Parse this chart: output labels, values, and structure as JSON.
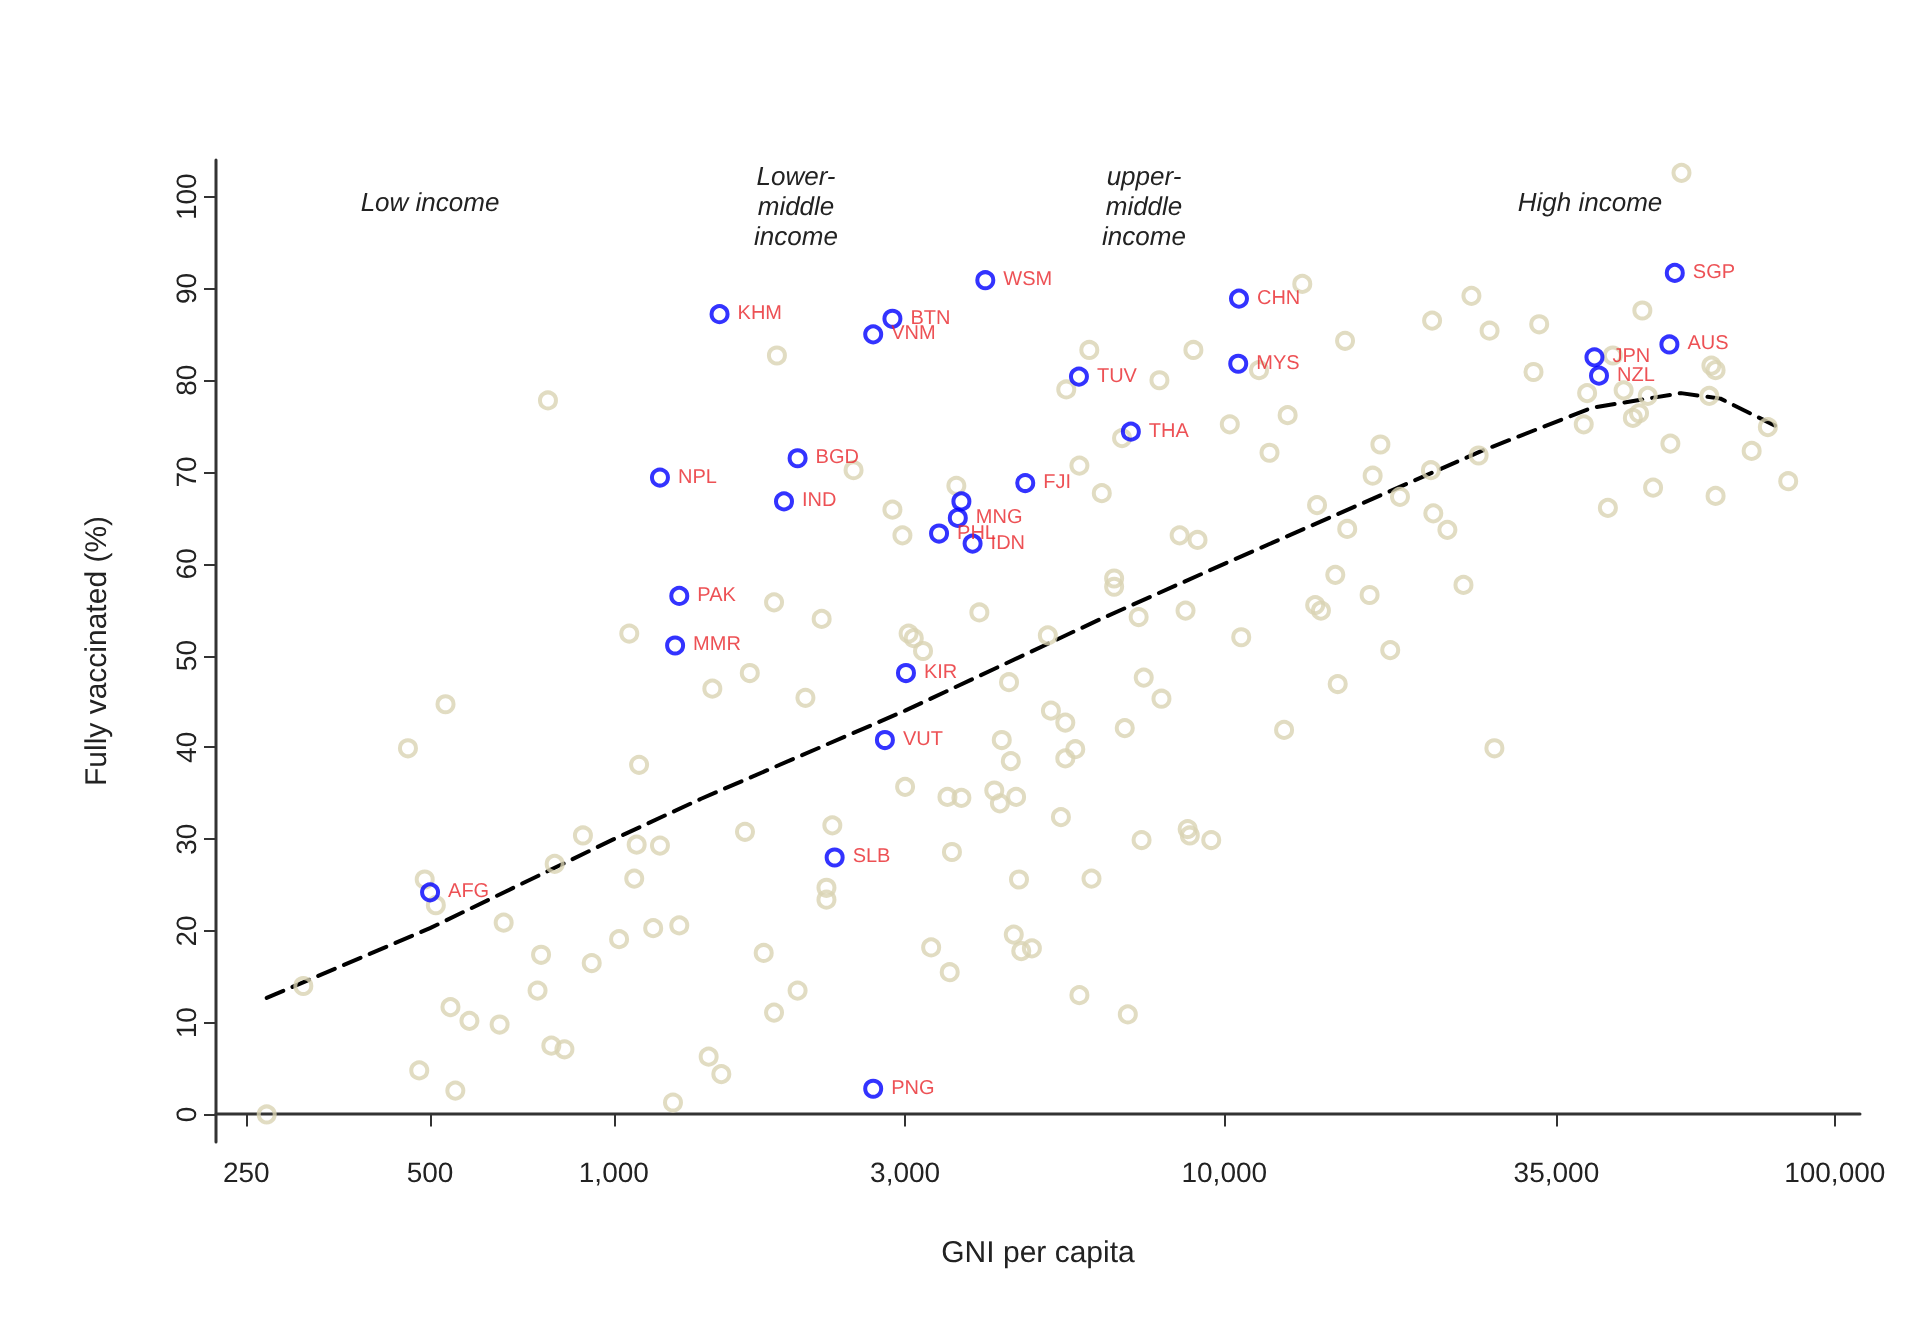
{
  "chart_data": {
    "type": "scatter",
    "xlabel": "GNI per capita",
    "ylabel": "Fully vaccinated (%)",
    "log": "x",
    "marker": "circle",
    "grid": false,
    "xlim": [
      223,
      110000
    ],
    "xticks": [
      250,
      500,
      {
        "value": 1000,
        "label": "1,000"
      },
      {
        "value": 3000,
        "label": "3,000"
      },
      {
        "value": 10000,
        "label": "10,000"
      },
      {
        "value": 35000,
        "label": "35,000"
      },
      {
        "value": 100000,
        "label": "100,000"
      }
    ],
    "ylim": [
      -3,
      104
    ],
    "yticks": [
      0,
      10,
      20,
      30,
      40,
      50,
      60,
      70,
      80,
      90,
      100
    ],
    "annotations": [
      "Low income",
      "Lower-\nmiddle\nincome",
      "upper-\nmiddle\nincome",
      "High income"
    ],
    "series": [
      {
        "color": "#d9d3b3",
        "x": [
          270,
          310,
          490,
          511,
          460,
          530,
          480,
          550,
          540,
          580,
          650,
          660,
          780,
          760,
          750,
          800,
          790,
          830,
          890,
          920,
          1020,
          1060,
          1100,
          1090,
          1080,
          1190,
          1160,
          1280,
          1250,
          1850,
          5510,
          6010,
          2470,
          2860,
          2970,
          3640,
          5790,
          1830,
          2190,
          1670,
          1450,
          2060,
          3040,
          3100,
          3210,
          3970,
          5140,
          4440,
          5200,
          5490,
          5700,
          5490,
          4320,
          4470,
          3000,
          3520,
          3710,
          4200,
          4290,
          4560,
          5400,
          2280,
          1640,
          3580,
          4610,
          6060,
          2230,
          2230,
          1760,
          3310,
          4520,
          4650,
          4840,
          3550,
          2000,
          1830,
          5790,
          1430,
          1500,
          11400,
          13420,
          25400,
          21900,
          15770,
          8900,
          7830,
          6800,
          10210,
          12700,
          11860,
          18020,
          17500,
          21800,
          6300,
          19400,
          14190,
          22000,
          23200,
          15900,
          8450,
          9040,
          6600,
          6600,
          15200,
          24650,
          7240,
          8640,
          14090,
          14400,
          17300,
          10660,
          18700,
          7380,
          7890,
          15340,
          6870,
          12530,
          7320,
          8710,
          8780,
          9520,
          6950,
          56100,
          27200,
          32800,
          48400,
          32100,
          43300,
          62800,
          63800,
          39300,
          45100,
          49400,
          62300,
          46700,
          47800,
          38800,
          77700,
          26100,
          53800,
          73100,
          50400,
          63800,
          83900,
          42500,
          27700
        ],
        "values": [
          0,
          14.0,
          25.6,
          22.8,
          39.9,
          44.7,
          4.8,
          2.6,
          11.7,
          10.2,
          9.8,
          20.9,
          77.8,
          17.4,
          13.5,
          27.3,
          7.5,
          7.1,
          30.4,
          16.5,
          19.1,
          52.4,
          38.1,
          29.4,
          25.7,
          29.3,
          20.3,
          20.6,
          1.3,
          82.7,
          79.0,
          83.3,
          70.2,
          65.9,
          63.1,
          68.5,
          70.7,
          55.8,
          54.0,
          48.1,
          46.4,
          45.4,
          52.4,
          51.9,
          50.5,
          54.7,
          52.2,
          47.1,
          44.0,
          42.7,
          39.8,
          38.8,
          40.8,
          38.5,
          35.7,
          34.6,
          34.5,
          35.3,
          33.9,
          34.6,
          32.4,
          31.5,
          30.8,
          28.6,
          25.6,
          25.7,
          24.7,
          23.4,
          17.6,
          18.2,
          19.6,
          17.8,
          18.1,
          15.5,
          13.5,
          11.1,
          13.0,
          6.3,
          4.4,
          81.1,
          90.5,
          89.2,
          86.5,
          84.3,
          83.3,
          80.0,
          73.7,
          75.2,
          76.2,
          72.1,
          73.0,
          69.6,
          70.2,
          67.7,
          67.3,
          66.4,
          65.5,
          63.7,
          63.8,
          63.1,
          62.6,
          58.4,
          57.5,
          58.8,
          57.7,
          54.2,
          54.9,
          55.5,
          54.9,
          56.6,
          52.0,
          50.6,
          47.6,
          45.3,
          46.9,
          42.1,
          41.9,
          29.9,
          31.1,
          30.4,
          29.9,
          10.9,
          102.6,
          85.4,
          86.1,
          87.6,
          80.9,
          82.7,
          81.6,
          81.1,
          78.6,
          78.9,
          78.3,
          78.3,
          75.9,
          76.4,
          75.2,
          74.9,
          71.8,
          73.1,
          72.3,
          68.3,
          67.4,
          69.0,
          66.1,
          39.9
        ]
      },
      {
        "type": "line",
        "marker": "none",
        "color": "#000000",
        "line_style": "dashed",
        "x": [
          270,
          500,
          1000,
          1390,
          3000,
          6280,
          10000,
          26400,
          40000,
          56000,
          65000,
          81300
        ],
        "values": [
          12.7,
          20.3,
          30.0,
          34.4,
          44.0,
          54.0,
          60.0,
          72.3,
          77.0,
          78.6,
          78.0,
          74.8
        ]
      },
      {
        "color": "#0000ff",
        "x": [
          500,
          1190,
          1280,
          1260,
          1490,
          2860,
          2660,
          4060,
          5780,
          2000,
          1900,
          3710,
          3660,
          3410,
          3870,
          4720,
          3010,
          2780,
          2300,
          2660,
          10570,
          10540,
          7030,
          54700,
          53600,
          40400,
          41100
        ],
        "values": [
          24.2,
          69.4,
          56.5,
          51.1,
          87.2,
          86.7,
          85.0,
          90.9,
          80.4,
          71.5,
          66.8,
          66.8,
          65.0,
          63.3,
          62.2,
          68.8,
          48.1,
          40.8,
          28.0,
          2.8,
          88.9,
          81.8,
          74.4,
          91.7,
          83.9,
          82.5,
          80.5
        ],
        "value_labels": [
          "AFG",
          "NPL",
          "PAK",
          "MMR",
          "KHM",
          "BTN",
          "VNM",
          "WSM",
          "TUV",
          "BGD",
          "IND",
          null,
          "MNG",
          "PHL",
          "IDN",
          "FJI",
          "KIR",
          "VUT",
          "SLB",
          "PNG",
          "CHN",
          "MYS",
          "THA",
          "SGP",
          "AUS",
          "JPN",
          "NZL"
        ]
      }
    ]
  }
}
